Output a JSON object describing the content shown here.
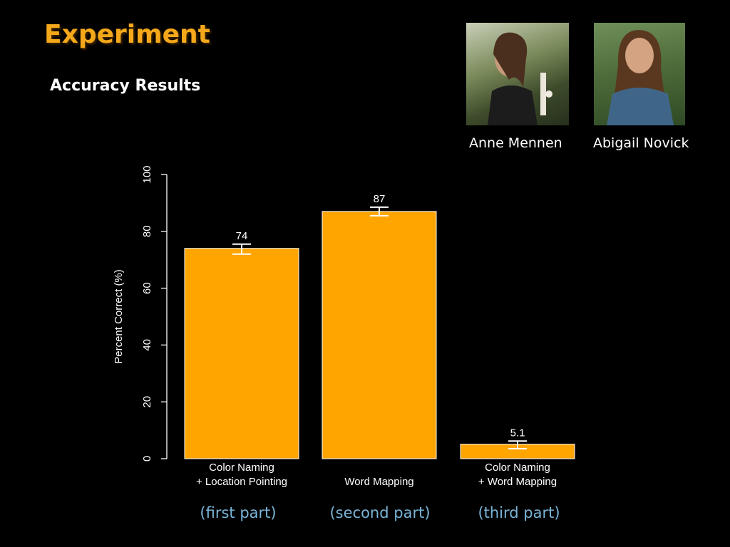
{
  "slide": {
    "title": "Experiment",
    "subtitle": "Accuracy Results"
  },
  "people": [
    {
      "name": "Anne Mennen",
      "photo": "portrait-photo"
    },
    {
      "name": "Abigail Novick",
      "photo": "portrait-photo"
    }
  ],
  "part_labels": [
    "(first part)",
    "(second part)",
    "(third part)"
  ],
  "colors": {
    "bar": "#ffa500",
    "bar_outline": "#ffffff",
    "axis": "#ffffff",
    "title": "#f4a81a",
    "part_label": "#7ab4d8",
    "background": "#000000"
  },
  "chart_data": {
    "type": "bar",
    "categories": [
      [
        "Color Naming",
        "+ Location Pointing"
      ],
      [
        "Word Mapping"
      ],
      [
        "Color Naming",
        "+ Word Mapping"
      ]
    ],
    "values": [
      74,
      87,
      5.1
    ],
    "value_labels": [
      "74",
      "87",
      "5.1"
    ],
    "error_bars": [
      {
        "low": 72,
        "high": 75.5
      },
      {
        "low": 85.5,
        "high": 88.5
      },
      {
        "low": 3.5,
        "high": 6.2
      }
    ],
    "ylabel": "Percent Correct (%)",
    "xlabel": "",
    "ylim": [
      0,
      100
    ],
    "yticks": [
      0,
      20,
      40,
      60,
      80,
      100
    ],
    "grid": false
  }
}
